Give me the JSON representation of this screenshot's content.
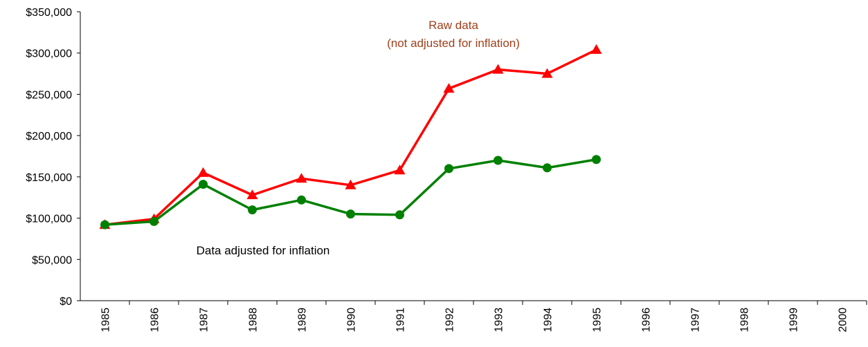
{
  "chart_data": {
    "type": "line",
    "annotations": [
      "Raw data",
      "(not adjusted for inflation)",
      "Data adjusted for inflation"
    ],
    "categories": [
      "1985",
      "1986",
      "1987",
      "1988",
      "1989",
      "1990",
      "1991",
      "1992",
      "1993",
      "1994",
      "1995",
      "1996",
      "1997",
      "1998",
      "1999",
      "2000"
    ],
    "series": [
      {
        "color": "#ff0000",
        "marker": "triangle",
        "values": [
          92000,
          99000,
          155000,
          128000,
          148000,
          140000,
          158000,
          257000,
          280000,
          275000,
          304000,
          null,
          null,
          null,
          null,
          null
        ]
      },
      {
        "color": "#008000",
        "marker": "circle",
        "values": [
          92000,
          96000,
          141000,
          110000,
          122000,
          105000,
          104000,
          160000,
          170000,
          161000,
          171000,
          null,
          null,
          null,
          null,
          null
        ]
      }
    ],
    "ylim": [
      0,
      350000
    ],
    "yticks": [
      {
        "value": 0,
        "label": "$0"
      },
      {
        "value": 50000,
        "label": "$50,000"
      },
      {
        "value": 100000,
        "label": "$100,000"
      },
      {
        "value": 150000,
        "label": "$150,000"
      },
      {
        "value": 200000,
        "label": "$200,000"
      },
      {
        "value": 250000,
        "label": "$250,000"
      },
      {
        "value": 300000,
        "label": "$300,000"
      },
      {
        "value": 350000,
        "label": "$350,000"
      }
    ]
  }
}
